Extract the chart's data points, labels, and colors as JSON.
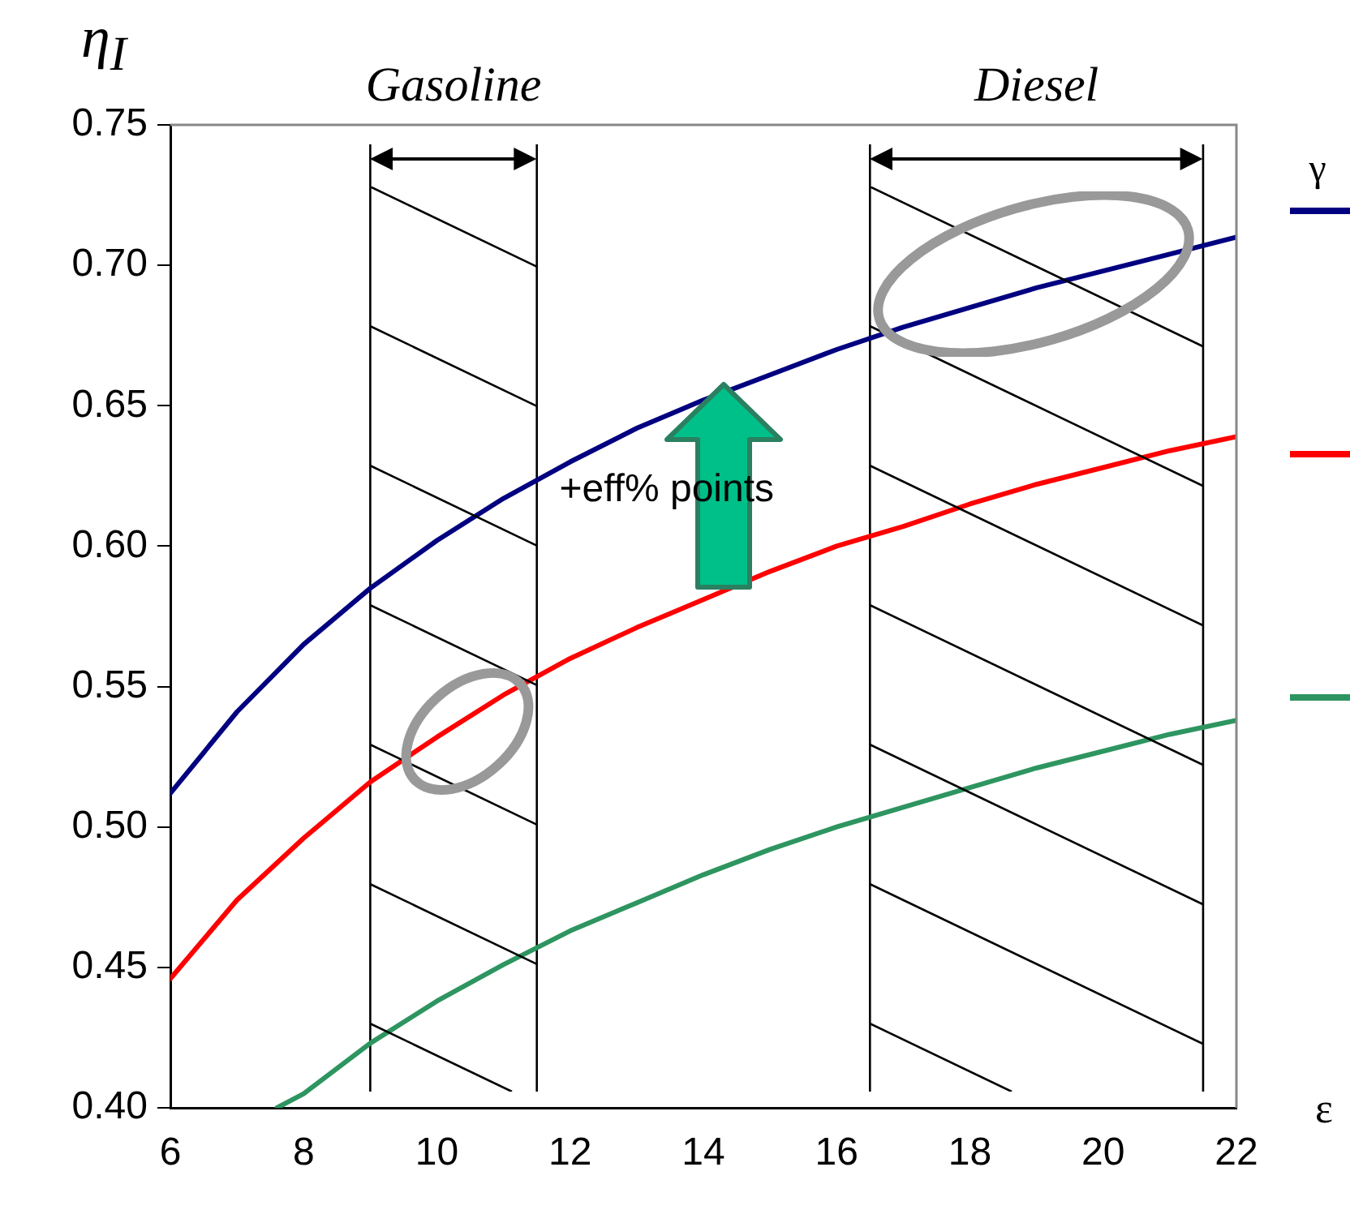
{
  "chart_data": {
    "type": "line",
    "ylabel": "η$_{I}$",
    "xlabel": "ε",
    "legend_title": "γ",
    "annotations": [
      {
        "text": "+eff% points",
        "x": 14.2,
        "y": 0.655
      },
      "Gasoline",
      "Diesel"
    ],
    "xlim": [
      6,
      22
    ],
    "xticks": [
      6,
      8,
      10,
      12,
      14,
      16,
      18,
      20,
      22
    ],
    "ylim": [
      0.4,
      0.75
    ],
    "yticks": [
      {
        "value": 0.4,
        "label": "0.40"
      },
      0.45,
      {
        "value": 0.5,
        "label": "0.50"
      },
      0.55,
      {
        "value": 0.6,
        "label": "0.60"
      },
      0.65,
      {
        "value": 0.7,
        "label": "0.70"
      },
      0.75
    ],
    "grid": false,
    "marker": "none",
    "line_style": "solid",
    "ref_lines": [
      {
        "axis": "x",
        "value": 9
      },
      {
        "axis": "x",
        "value": 11.5
      },
      {
        "axis": "x",
        "value": 16.5
      },
      {
        "axis": "x",
        "value": 21.5
      }
    ],
    "x": [
      6,
      7,
      8,
      9,
      10,
      11,
      12,
      13,
      14,
      15,
      16,
      17,
      18,
      19,
      20,
      21,
      22
    ],
    "series": [
      {
        "color": "#000080",
        "values": [
          0.512,
          0.541,
          0.565,
          0.585,
          0.602,
          0.617,
          0.63,
          0.642,
          0.652,
          0.661,
          0.67,
          0.678,
          0.685,
          0.692,
          0.698,
          0.704,
          0.71
        ]
      },
      {
        "color": "#ff0000",
        "values": [
          0.446,
          0.474,
          0.496,
          0.516,
          0.532,
          0.547,
          0.56,
          0.571,
          0.581,
          0.591,
          0.6,
          0.607,
          0.615,
          0.622,
          0.628,
          0.634,
          0.639
        ]
      },
      {
        "color": "#2e9560",
        "x": [
          7.6,
          8,
          9,
          10,
          11,
          12,
          13,
          14,
          15,
          16,
          17,
          18,
          19,
          20,
          21,
          22
        ],
        "values": [
          0.4,
          0.405,
          0.423,
          0.438,
          0.451,
          0.463,
          0.473,
          0.483,
          0.492,
          0.5,
          0.507,
          0.514,
          0.521,
          0.527,
          0.533,
          0.538
        ]
      }
    ]
  }
}
